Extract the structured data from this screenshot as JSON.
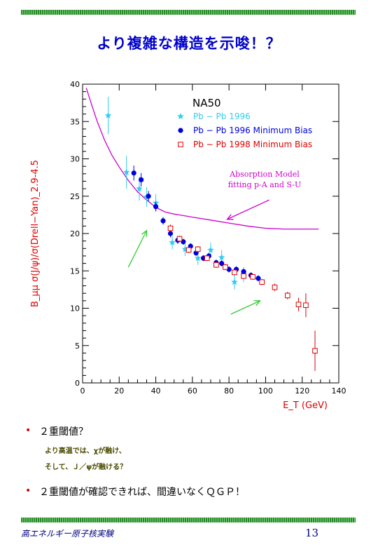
{
  "slide": {
    "title": "より複雑な構造を示唆！？",
    "bullets": [
      {
        "text": "２重閾値？",
        "subs": [
          "より高温では、χが融け、",
          "そして、Ｊ／ψが融ける？"
        ]
      },
      {
        "text": "２重閾値が確認できれば、間違いなくＱＧＰ！",
        "subs": []
      }
    ],
    "footer_left": "高エネルギー原子核実験",
    "page_number": "13",
    "colors": {
      "title": "#0000cc",
      "rule": "#2c8a2c",
      "bullet": "#cc0000",
      "footer": "#000080"
    }
  },
  "chart_data": {
    "type": "scatter",
    "experiment_label": "NA50",
    "xlabel": "E_T (GeV)",
    "ylabel": "B_μμ σ(J/ψ)/σ(Drell−Yan)_2.9-4.5",
    "xlim": [
      0,
      140
    ],
    "ylim": [
      0,
      40
    ],
    "xticks": [
      0,
      20,
      40,
      60,
      80,
      100,
      120,
      140
    ],
    "yticks": [
      0,
      5,
      10,
      15,
      20,
      25,
      30,
      35,
      40
    ],
    "legend_position": "top-right",
    "annotation": {
      "text": [
        "Absorption Model",
        "fitting p-A and S-U"
      ],
      "color": "#cc00cc"
    },
    "absorption_curve": {
      "color": "#cc00cc",
      "x": [
        2,
        5,
        8,
        12,
        16,
        20,
        25,
        30,
        35,
        40,
        45,
        50,
        55,
        60,
        70,
        80,
        90,
        100,
        110,
        120,
        129
      ],
      "y": [
        39.5,
        37.2,
        35.0,
        32.5,
        30.5,
        28.9,
        27.1,
        25.6,
        24.5,
        23.5,
        22.9,
        22.6,
        22.4,
        22.2,
        21.8,
        21.4,
        21.0,
        20.7,
        20.6,
        20.6,
        20.6
      ]
    },
    "arrows": [
      {
        "from": [
          25,
          15.5
        ],
        "to": [
          35,
          20.4
        ],
        "color": "#33cc33"
      },
      {
        "from": [
          81,
          9.2
        ],
        "to": [
          97,
          11.0
        ],
        "color": "#33cc33"
      },
      {
        "from": [
          102,
          24.5
        ],
        "to": [
          79,
          21.9
        ],
        "color": "#cc00cc"
      }
    ],
    "series": [
      {
        "name": "Pb − Pb 1996",
        "marker": "star",
        "color": "#33ccee",
        "x": [
          14,
          24,
          31,
          35,
          40,
          49,
          56,
          63,
          70,
          76,
          83,
          88
        ],
        "y": [
          35.8,
          28.2,
          26.0,
          24.9,
          24.1,
          18.8,
          17.9,
          16.7,
          17.8,
          16.8,
          13.5,
          14.5
        ],
        "err": [
          2.5,
          2.2,
          1.6,
          1.3,
          1.2,
          0.9,
          0.9,
          0.9,
          1.0,
          1.0,
          1.0,
          1.0
        ]
      },
      {
        "name": "Pb − Pb 1996 Minimum Bias",
        "marker": "circle",
        "color": "#0000dd",
        "x": [
          28,
          32,
          36,
          40,
          44,
          48,
          52,
          55,
          59,
          62,
          66,
          69,
          73,
          76,
          80,
          84,
          88,
          92,
          96
        ],
        "y": [
          28.1,
          27.2,
          25.0,
          23.6,
          21.7,
          20.0,
          19.1,
          18.9,
          18.3,
          17.4,
          16.7,
          17.0,
          16.1,
          16.0,
          15.2,
          15.2,
          14.9,
          14.4,
          14.0
        ],
        "err": [
          1.0,
          0.9,
          0.7,
          0.6,
          0.5,
          0.5,
          0.5,
          0.4,
          0.4,
          0.4,
          0.4,
          0.4,
          0.4,
          0.4,
          0.4,
          0.4,
          0.4,
          0.4,
          0.4
        ]
      },
      {
        "name": "Pb − Pb 1998 Minimum Bias",
        "marker": "square-open",
        "color": "#dd0000",
        "x": [
          48,
          53,
          58,
          63,
          68,
          73,
          78,
          83,
          88,
          93,
          98,
          105,
          112,
          118,
          122,
          127
        ],
        "y": [
          20.7,
          19.3,
          17.8,
          17.9,
          16.7,
          15.8,
          15.5,
          14.8,
          14.3,
          14.2,
          13.5,
          12.8,
          11.7,
          10.5,
          10.4,
          4.3
        ],
        "err": [
          0.5,
          0.4,
          0.4,
          0.4,
          0.4,
          0.4,
          0.4,
          0.4,
          0.4,
          0.4,
          0.4,
          0.5,
          0.5,
          0.9,
          1.6,
          2.7
        ]
      }
    ]
  }
}
